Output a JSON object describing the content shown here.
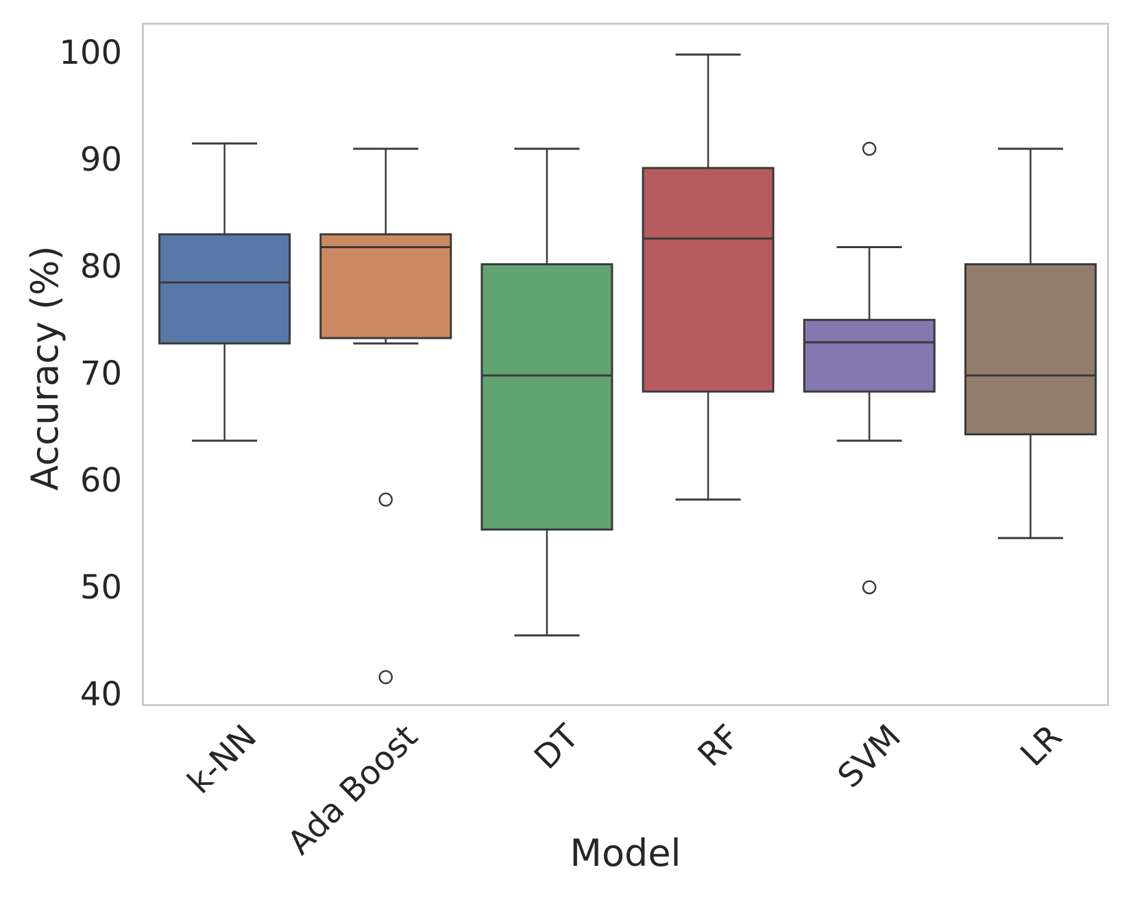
{
  "figure": {
    "background": "#ffffff",
    "frame_color": "#cbcbcb",
    "edge_color": "#3a3a3a",
    "text_color": "#262626"
  },
  "chart_data": {
    "type": "boxplot",
    "title": "",
    "xlabel": "Model",
    "ylabel": "Accuracy (%)",
    "categories": [
      "k-NN",
      "Ada Boost",
      "DT",
      "RF",
      "SVM",
      "LR"
    ],
    "ylim": [
      38.9,
      102.8
    ],
    "yticks": [
      40,
      50,
      60,
      70,
      80,
      90,
      100
    ],
    "grid": false,
    "legend": "none",
    "series": [
      {
        "name": "k-NN",
        "color": "#5878A8",
        "whislo": 63.9,
        "q1": 73.0,
        "med": 78.7,
        "q3": 83.2,
        "whishi": 91.7,
        "outliers": []
      },
      {
        "name": "Ada Boost",
        "color": "#CC8A62",
        "whislo": 73.0,
        "q1": 73.5,
        "med": 82.0,
        "q3": 83.2,
        "whishi": 91.2,
        "outliers": [
          58.4,
          41.8
        ]
      },
      {
        "name": "DT",
        "color": "#61A371",
        "whislo": 45.7,
        "q1": 55.6,
        "med": 70.0,
        "q3": 80.4,
        "whishi": 91.2,
        "outliers": []
      },
      {
        "name": "RF",
        "color": "#B65B5E",
        "whislo": 58.4,
        "q1": 68.5,
        "med": 82.8,
        "q3": 89.4,
        "whishi": 100.0,
        "outliers": []
      },
      {
        "name": "SVM",
        "color": "#8578B0",
        "whislo": 63.9,
        "q1": 68.5,
        "med": 73.1,
        "q3": 75.2,
        "whishi": 82.0,
        "outliers": [
          91.2,
          50.2
        ]
      },
      {
        "name": "LR",
        "color": "#927D6A",
        "whislo": 54.8,
        "q1": 64.5,
        "med": 70.0,
        "q3": 80.4,
        "whishi": 91.2,
        "outliers": []
      }
    ]
  }
}
